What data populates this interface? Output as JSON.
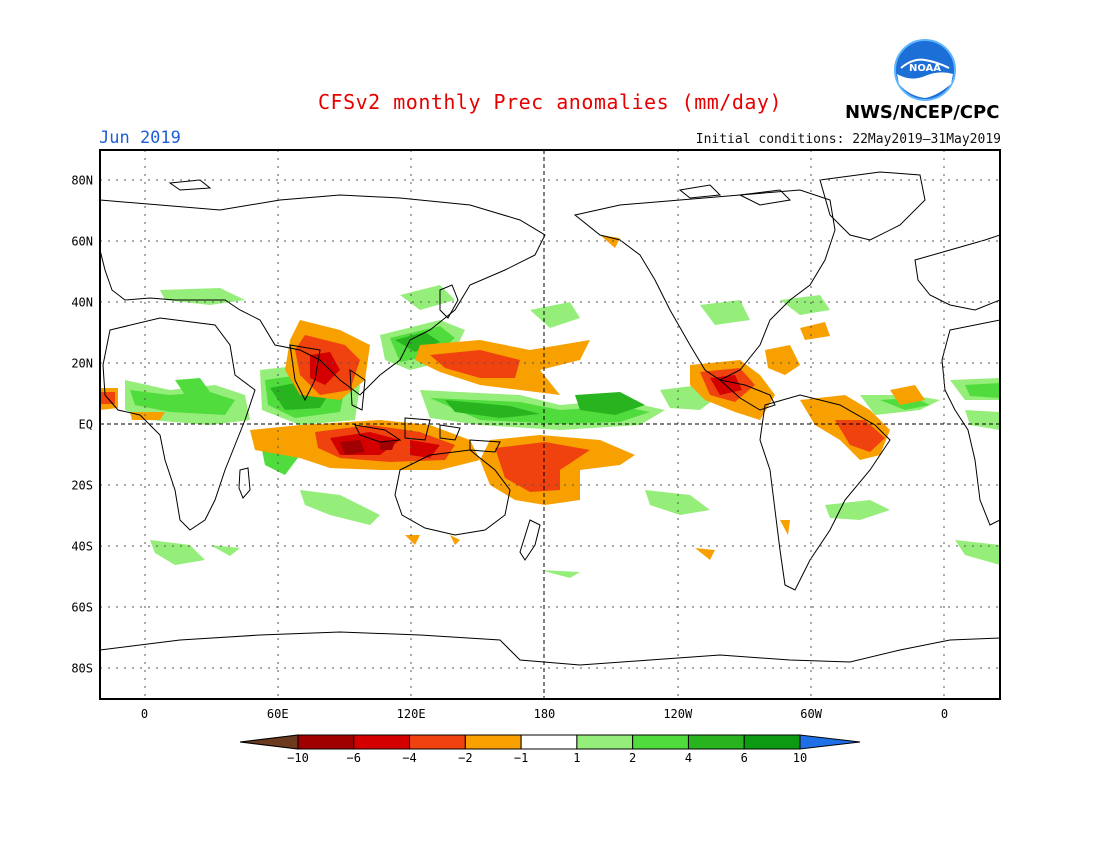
{
  "title": "CFSv2 monthly Prec anomalies (mm/day)",
  "month": "Jun 2019",
  "initial_conditions": "Initial conditions: 22May2019–31May2019",
  "agency": "NWS/NCEP/CPC",
  "logo_text": "NOAA",
  "lat_labels": [
    "80N",
    "60N",
    "40N",
    "20N",
    "EQ",
    "20S",
    "40S",
    "60S",
    "80S"
  ],
  "lat_values": [
    80,
    60,
    40,
    20,
    0,
    -20,
    -40,
    -60,
    -80
  ],
  "lon_labels": [
    "0",
    "60E",
    "120E",
    "180",
    "120W",
    "60W",
    "0"
  ],
  "lon_values": [
    0,
    60,
    120,
    180,
    240,
    300,
    360
  ],
  "colorbar": {
    "labels": [
      "−10",
      "−6",
      "−4",
      "−2",
      "−1",
      "1",
      "2",
      "4",
      "6",
      "10"
    ],
    "colors": [
      "#6b3a1f",
      "#a00000",
      "#d40000",
      "#f0420f",
      "#f7a000",
      "#ffffff",
      "#96ee7a",
      "#4fdc3c",
      "#28b41e",
      "#0c9a12",
      "#1f6fe6"
    ]
  },
  "colors": {
    "title": "#e60000",
    "month": "#1f5fd6"
  }
}
